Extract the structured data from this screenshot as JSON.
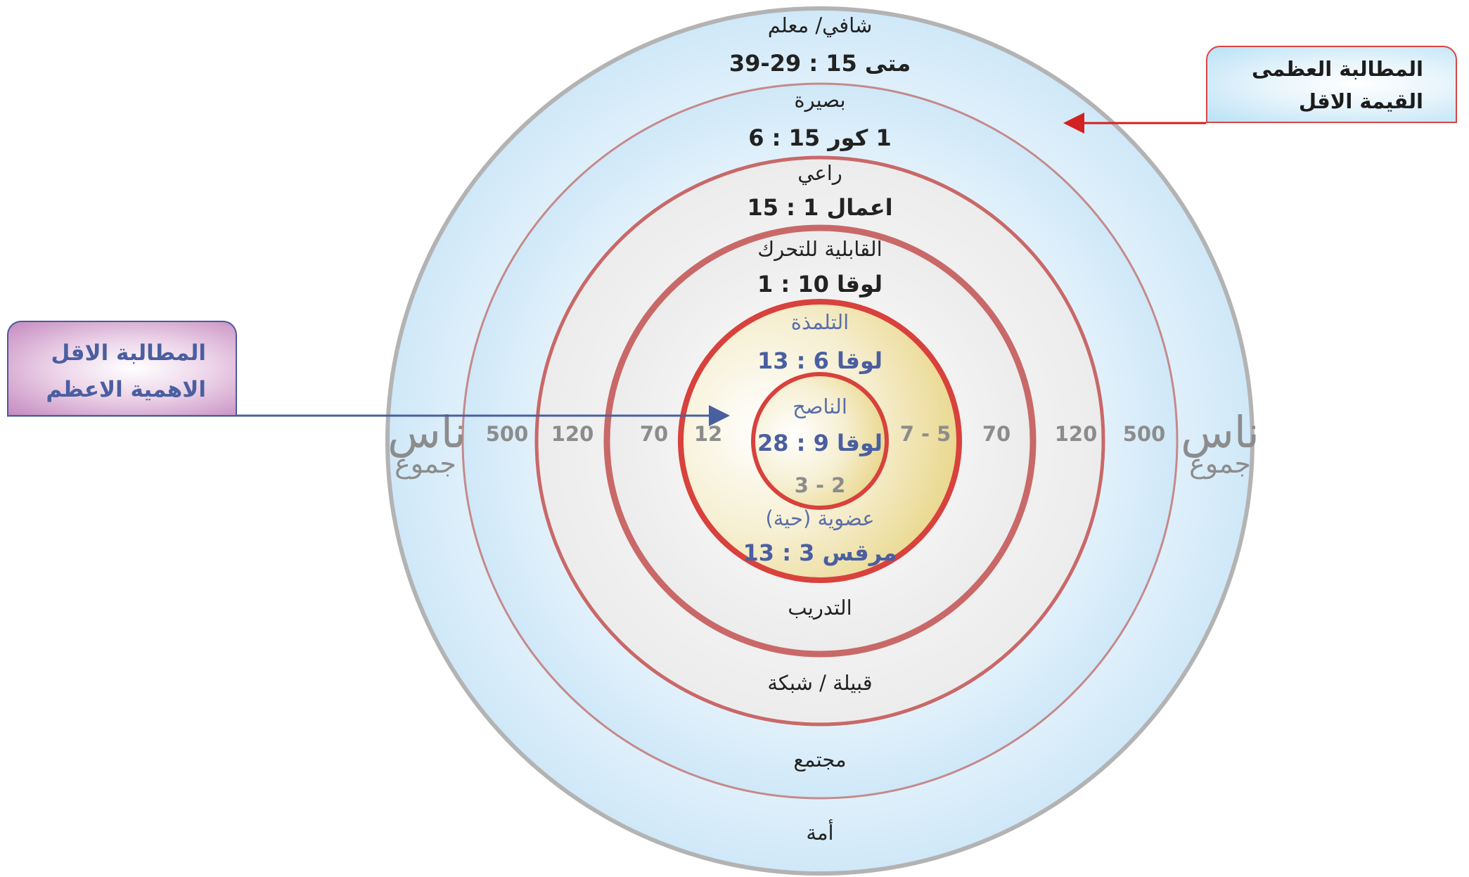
{
  "callouts": {
    "right": {
      "line1": "المطالبة العظمى",
      "line2": "القيمة الاقل"
    },
    "left": {
      "line1": "المطالبة الاقل",
      "line2": "الاهمية الاعظم"
    }
  },
  "rings": [
    {
      "name": "شافي/ معلم",
      "ref": "متى  15 : 29-39"
    },
    {
      "name": "بصيرة",
      "ref": "1 كور 15 : 6"
    },
    {
      "name": "راعي",
      "ref": "اعمال 1 : 15"
    },
    {
      "name": "القابلية للتحرك",
      "ref": "لوقا  10 : 1"
    },
    {
      "name": "التلمذة",
      "ref": "لوقا  6 : 13"
    },
    {
      "name": "الناصح",
      "ref": "لوقا  9 : 28"
    }
  ],
  "lower_labels": {
    "core_count": "3 - 2",
    "organic_name": "عضوية (حية)",
    "organic_ref": "مرقس  3 : 13",
    "training": "التدريب",
    "tribe": "قبيلة / شبكة",
    "society": "مجتمع",
    "nation": "أمة"
  },
  "side_counts": {
    "left": [
      "500",
      "120",
      "70",
      "12"
    ],
    "right": [
      "7 - 5",
      "70",
      "120",
      "500"
    ]
  },
  "side_labels": {
    "people": "ناس",
    "crowds": "جموع"
  },
  "colors": {
    "outer_fill": "#d6ecfa",
    "outer_ring": "#b3b3b3",
    "thin_ring": "#c48a8a",
    "thick_ring": "#c96868",
    "red_ring": "#d8413c",
    "core_fill": "#eedda0",
    "arrow_red": "#d32020",
    "arrow_blue": "#4a5fa0"
  }
}
